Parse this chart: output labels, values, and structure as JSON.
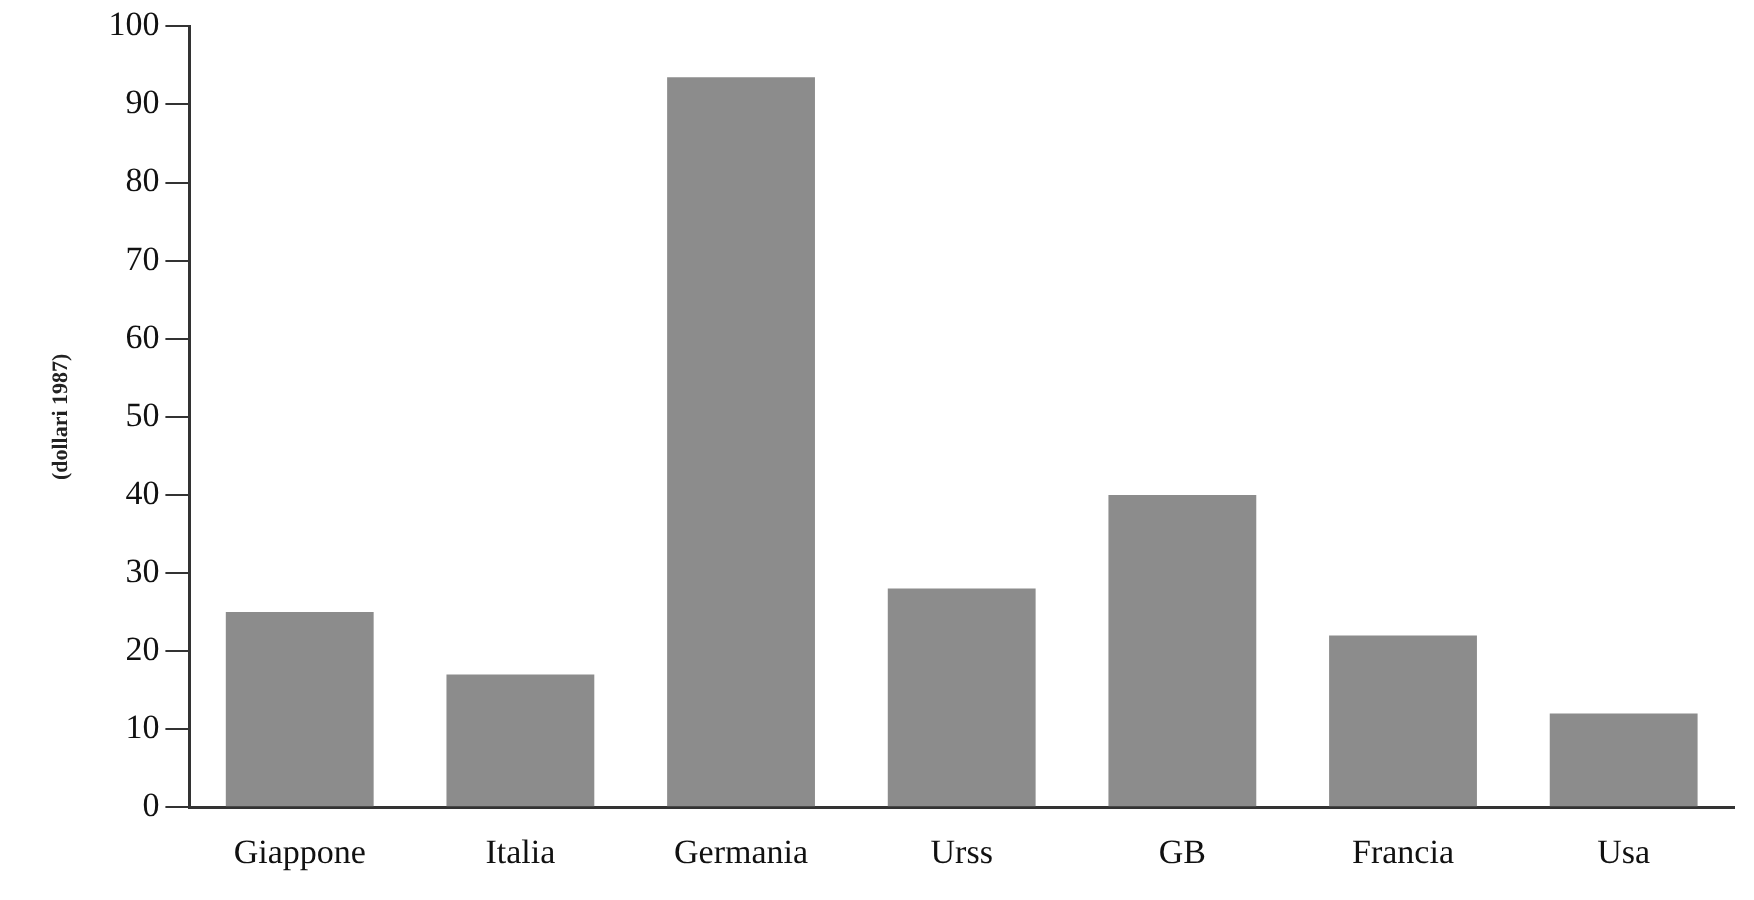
{
  "chart_data": {
    "type": "bar",
    "ylabel": "(dollari 1987)",
    "categories": [
      "Giappone",
      "Italia",
      "Germania",
      "Urss",
      "GB",
      "Francia",
      "Usa"
    ],
    "values": [
      25,
      17,
      93.5,
      28,
      40,
      22,
      12
    ],
    "color": "#8c8c8c",
    "ylim": [
      0,
      100
    ],
    "yticks": [
      0,
      10,
      20,
      30,
      40,
      50,
      60,
      70,
      80,
      90,
      100
    ],
    "grid": false,
    "legend": false
  }
}
